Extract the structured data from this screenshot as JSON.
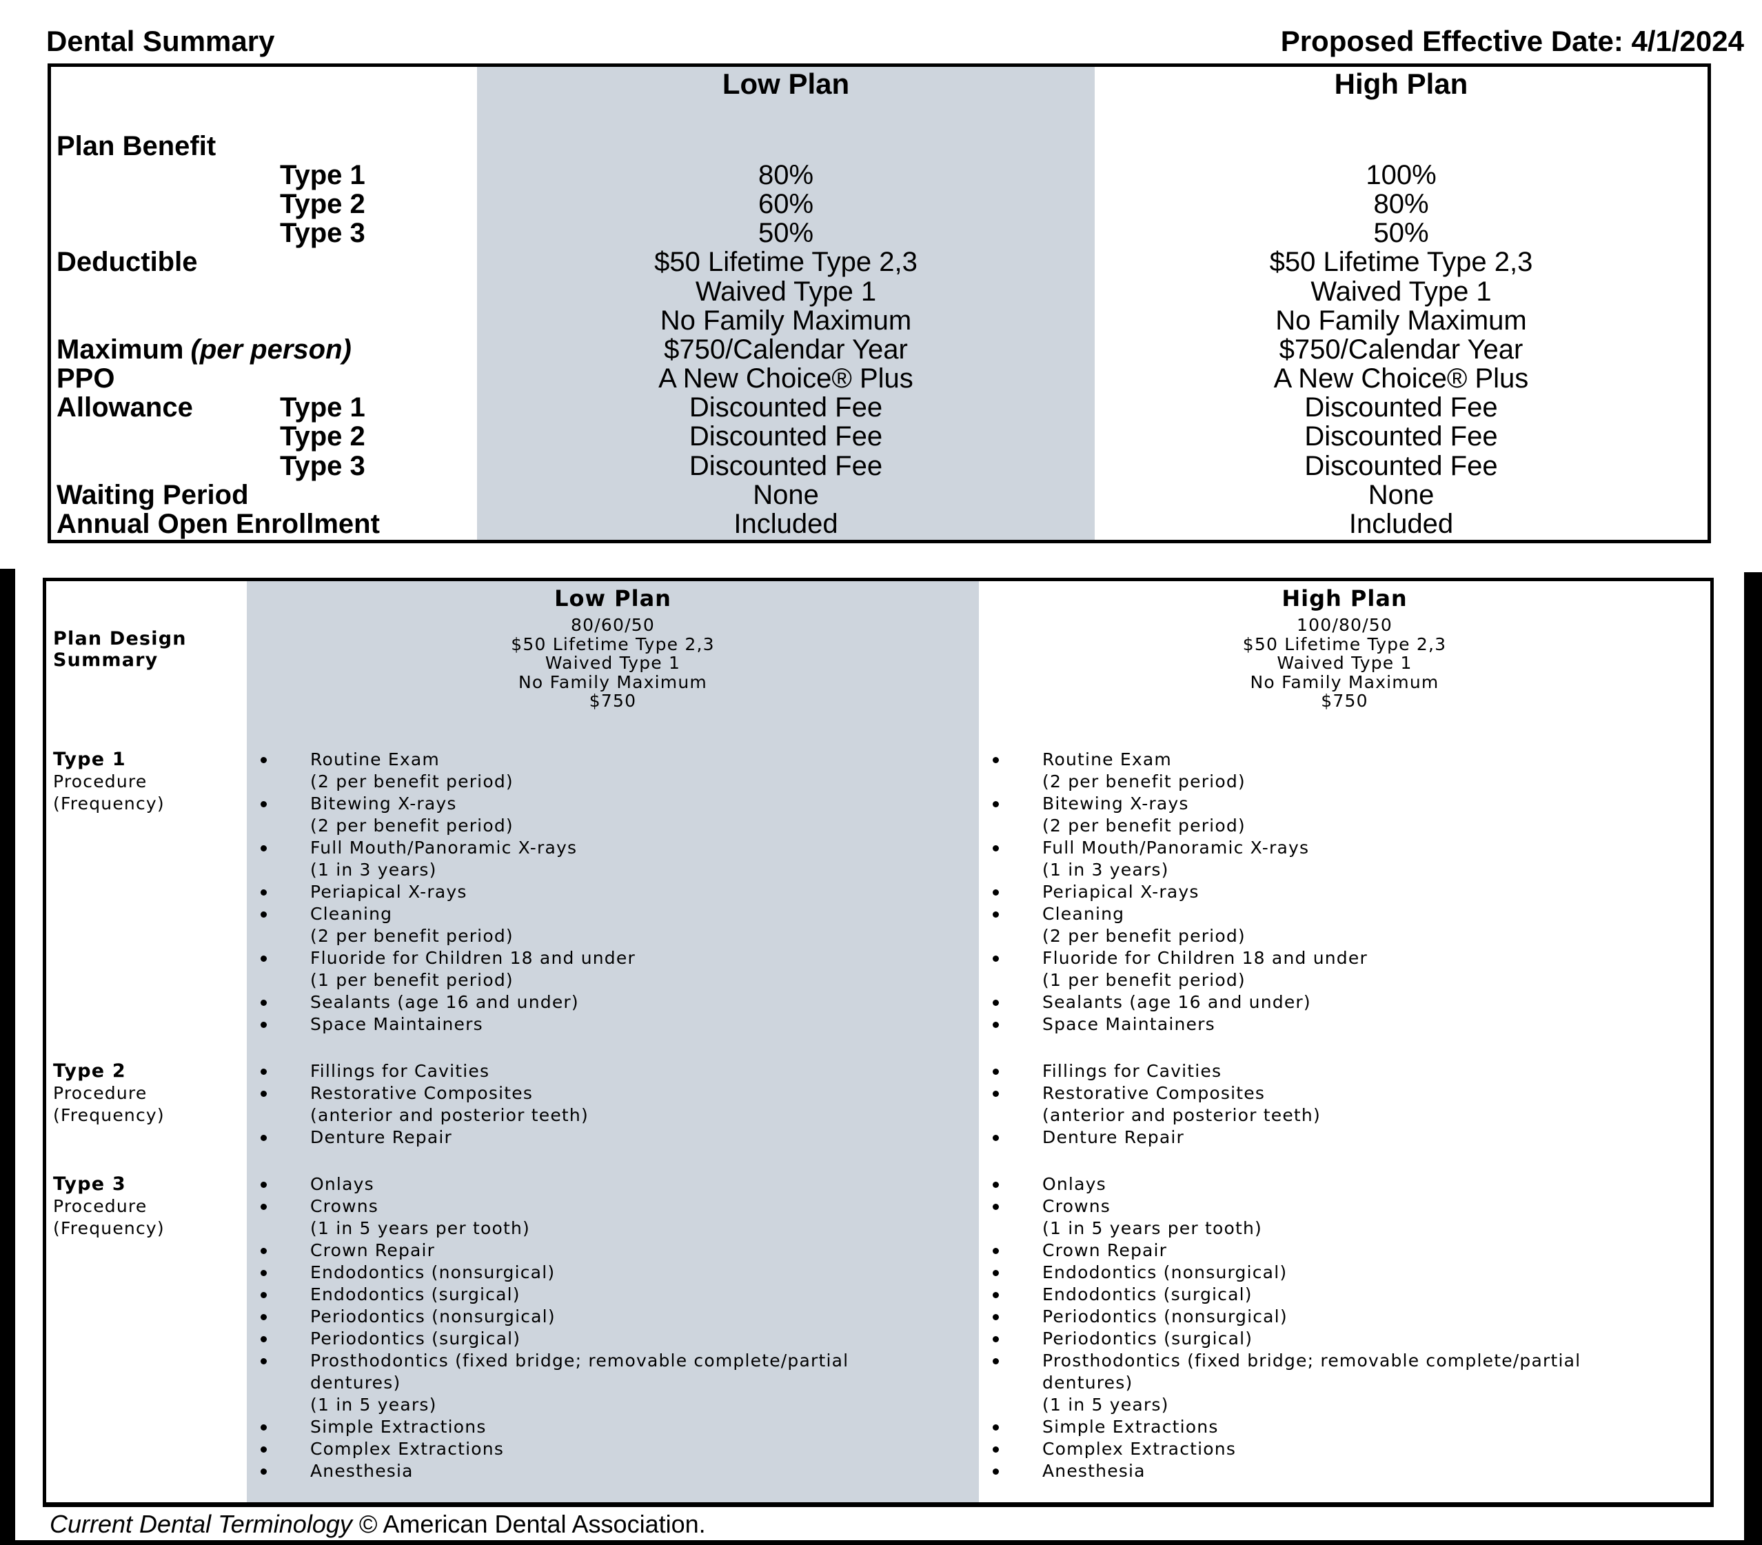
{
  "page": {
    "title": "Dental Summary",
    "effective_date": "Proposed Effective Date: 4/1/2024"
  },
  "colors": {
    "shaded_column": "#ced5dd",
    "border": "#000000",
    "scan_bar": "#000000",
    "page_bg": "#ffffff"
  },
  "benefit_table": {
    "low_header": "Low Plan",
    "high_header": "High Plan",
    "rows": [
      {
        "label": "Plan Benefit",
        "sub": "",
        "low": "",
        "high": ""
      },
      {
        "label": "",
        "sub": "Type 1",
        "low": "80%",
        "high": "100%"
      },
      {
        "label": "",
        "sub": "Type 2",
        "low": "60%",
        "high": "80%"
      },
      {
        "label": "",
        "sub": "Type 3",
        "low": "50%",
        "high": "50%"
      },
      {
        "label": "Deductible",
        "sub": "",
        "low": "$50 Lifetime Type 2,3",
        "high": "$50 Lifetime Type 2,3"
      },
      {
        "label": "",
        "sub": "",
        "low": "Waived Type 1",
        "high": "Waived Type 1"
      },
      {
        "label": "",
        "sub": "",
        "low": "No Family Maximum",
        "high": "No Family Maximum"
      },
      {
        "label": "Maximum",
        "label_italic": "(per person)",
        "sub": "",
        "low": "$750/Calendar Year",
        "high": "$750/Calendar Year"
      },
      {
        "label": "PPO",
        "sub": "",
        "low": "A New Choice® Plus",
        "high": "A New Choice® Plus"
      },
      {
        "label": "Allowance",
        "sub": "Type 1",
        "low": "Discounted Fee",
        "high": "Discounted Fee"
      },
      {
        "label": "",
        "sub": "Type 2",
        "low": "Discounted Fee",
        "high": "Discounted Fee"
      },
      {
        "label": "",
        "sub": "Type 3",
        "low": "Discounted Fee",
        "high": "Discounted Fee"
      },
      {
        "label": "Waiting Period",
        "sub": "",
        "low": "None",
        "high": "None"
      },
      {
        "label": "Annual Open Enrollment",
        "sub": "",
        "low": "Included",
        "high": "Included"
      }
    ]
  },
  "design_table": {
    "low_header": "Low Plan",
    "high_header": "High Plan",
    "summary": {
      "label_lines": [
        "Plan Design",
        "Summary"
      ],
      "low_lines": [
        "80/60/50",
        "$50 Lifetime Type 2,3",
        "Waived Type 1",
        "No Family Maximum",
        "$750"
      ],
      "high_lines": [
        "100/80/50",
        "$50 Lifetime Type 2,3",
        "Waived Type 1",
        "No Family Maximum",
        "$750"
      ]
    },
    "sections": [
      {
        "label": "Type 1",
        "label_lines": [
          "Procedure",
          "(Frequency)"
        ],
        "items": [
          {
            "text": "Routine Exam",
            "subs": [
              "(2 per benefit period)"
            ]
          },
          {
            "text": "Bitewing X-rays",
            "subs": [
              "(2 per benefit period)"
            ]
          },
          {
            "text": "Full Mouth/Panoramic X-rays",
            "subs": [
              "(1 in 3 years)"
            ]
          },
          {
            "text": "Periapical X-rays",
            "subs": []
          },
          {
            "text": "Cleaning",
            "subs": [
              "(2 per benefit period)"
            ]
          },
          {
            "text": "Fluoride for Children 18 and under",
            "subs": [
              "(1 per benefit period)"
            ]
          },
          {
            "text": "Sealants (age 16 and under)",
            "subs": []
          },
          {
            "text": "Space Maintainers",
            "subs": []
          }
        ]
      },
      {
        "label": "Type 2",
        "label_lines": [
          "Procedure",
          "(Frequency)"
        ],
        "items": [
          {
            "text": "Fillings for Cavities",
            "subs": []
          },
          {
            "text": "Restorative Composites",
            "subs": [
              "(anterior and posterior teeth)"
            ]
          },
          {
            "text": "Denture Repair",
            "subs": []
          }
        ]
      },
      {
        "label": "Type 3",
        "label_lines": [
          "Procedure",
          "(Frequency)"
        ],
        "items": [
          {
            "text": "Onlays",
            "subs": []
          },
          {
            "text": "Crowns",
            "subs": [
              "(1 in 5 years per tooth)"
            ]
          },
          {
            "text": "Crown Repair",
            "subs": []
          },
          {
            "text": "Endodontics (nonsurgical)",
            "subs": []
          },
          {
            "text": "Endodontics (surgical)",
            "subs": []
          },
          {
            "text": "Periodontics (nonsurgical)",
            "subs": []
          },
          {
            "text": "Periodontics (surgical)",
            "subs": []
          },
          {
            "text": "Prosthodontics (fixed bridge; removable complete/partial",
            "subs": [
              "dentures)",
              "(1 in 5 years)"
            ]
          },
          {
            "text": "Simple Extractions",
            "subs": []
          },
          {
            "text": "Complex Extractions",
            "subs": []
          },
          {
            "text": "Anesthesia",
            "subs": []
          }
        ]
      }
    ]
  },
  "footer": {
    "italic_text": "Current Dental Terminology",
    "normal_text": " © American Dental Association."
  }
}
